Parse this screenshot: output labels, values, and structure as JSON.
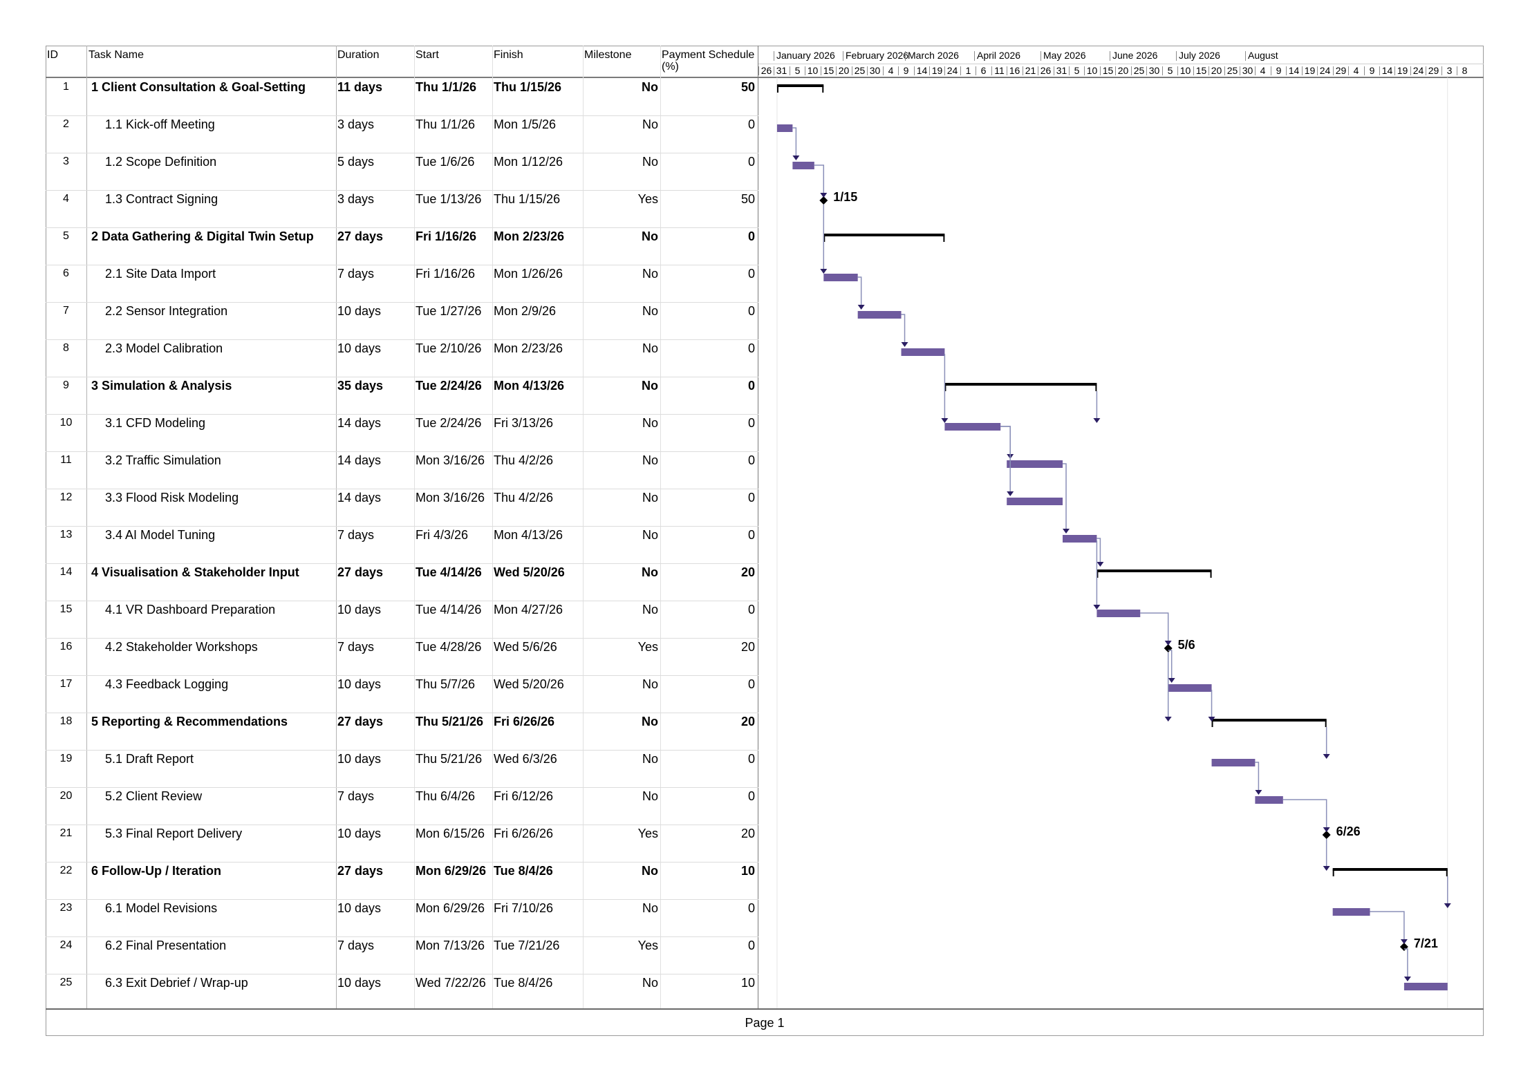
{
  "columns": {
    "id": "ID",
    "name": "Task Name",
    "duration": "Duration",
    "start": "Start",
    "finish": "Finish",
    "milestone": "Milestone",
    "payment_line1": "Payment Schedule",
    "payment_line2": "(%)"
  },
  "timeline": {
    "months": [
      "January 2026",
      "February 2026",
      "March 2026",
      "April 2026",
      "May 2026",
      "June 2026",
      "July 2026",
      "August"
    ],
    "days": [
      "26",
      "31",
      "5",
      "10",
      "15",
      "20",
      "25",
      "30",
      "4",
      "9",
      "14",
      "19",
      "24",
      "1",
      "6",
      "11",
      "16",
      "21",
      "26",
      "31",
      "5",
      "10",
      "15",
      "20",
      "25",
      "30",
      "5",
      "10",
      "15",
      "20",
      "25",
      "30",
      "4",
      "9",
      "14",
      "19",
      "24",
      "29",
      "4",
      "9",
      "14",
      "19",
      "24",
      "29",
      "3",
      "8"
    ]
  },
  "tasks": [
    {
      "id": "1",
      "name": "1 Client Consultation & Goal-Setting",
      "duration": "11 days",
      "start": "Thu 1/1/26",
      "finish": "Thu 1/15/26",
      "milestone": "No",
      "payment": "50",
      "summary": true,
      "s": "2026-01-01",
      "f": "2026-01-15"
    },
    {
      "id": "2",
      "name": "1.1 Kick-off Meeting",
      "duration": "3 days",
      "start": "Thu 1/1/26",
      "finish": "Mon 1/5/26",
      "milestone": "No",
      "payment": "0",
      "summary": false,
      "s": "2026-01-01",
      "f": "2026-01-05"
    },
    {
      "id": "3",
      "name": "1.2 Scope Definition",
      "duration": "5 days",
      "start": "Tue 1/6/26",
      "finish": "Mon 1/12/26",
      "milestone": "No",
      "payment": "0",
      "summary": false,
      "s": "2026-01-06",
      "f": "2026-01-12"
    },
    {
      "id": "4",
      "name": "1.3 Contract Signing",
      "duration": "3 days",
      "start": "Tue 1/13/26",
      "finish": "Thu 1/15/26",
      "milestone": "Yes",
      "payment": "50",
      "summary": false,
      "s": "2026-01-13",
      "f": "2026-01-15",
      "mlabel": "1/15"
    },
    {
      "id": "5",
      "name": "2 Data Gathering & Digital Twin Setup",
      "duration": "27 days",
      "start": "Fri 1/16/26",
      "finish": "Mon 2/23/26",
      "milestone": "No",
      "payment": "0",
      "summary": true,
      "s": "2026-01-16",
      "f": "2026-02-23"
    },
    {
      "id": "6",
      "name": "2.1 Site Data Import",
      "duration": "7 days",
      "start": "Fri 1/16/26",
      "finish": "Mon 1/26/26",
      "milestone": "No",
      "payment": "0",
      "summary": false,
      "s": "2026-01-16",
      "f": "2026-01-26"
    },
    {
      "id": "7",
      "name": "2.2 Sensor Integration",
      "duration": "10 days",
      "start": "Tue 1/27/26",
      "finish": "Mon 2/9/26",
      "milestone": "No",
      "payment": "0",
      "summary": false,
      "s": "2026-01-27",
      "f": "2026-02-09"
    },
    {
      "id": "8",
      "name": "2.3 Model Calibration",
      "duration": "10 days",
      "start": "Tue 2/10/26",
      "finish": "Mon 2/23/26",
      "milestone": "No",
      "payment": "0",
      "summary": false,
      "s": "2026-02-10",
      "f": "2026-02-23"
    },
    {
      "id": "9",
      "name": "3 Simulation & Analysis",
      "duration": "35 days",
      "start": "Tue 2/24/26",
      "finish": "Mon 4/13/26",
      "milestone": "No",
      "payment": "0",
      "summary": true,
      "s": "2026-02-24",
      "f": "2026-04-13"
    },
    {
      "id": "10",
      "name": "3.1 CFD Modeling",
      "duration": "14 days",
      "start": "Tue 2/24/26",
      "finish": "Fri 3/13/26",
      "milestone": "No",
      "payment": "0",
      "summary": false,
      "s": "2026-02-24",
      "f": "2026-03-13"
    },
    {
      "id": "11",
      "name": "3.2 Traffic Simulation",
      "duration": "14 days",
      "start": "Mon 3/16/26",
      "finish": "Thu 4/2/26",
      "milestone": "No",
      "payment": "0",
      "summary": false,
      "s": "2026-03-16",
      "f": "2026-04-02"
    },
    {
      "id": "12",
      "name": "3.3 Flood Risk Modeling",
      "duration": "14 days",
      "start": "Mon 3/16/26",
      "finish": "Thu 4/2/26",
      "milestone": "No",
      "payment": "0",
      "summary": false,
      "s": "2026-03-16",
      "f": "2026-04-02"
    },
    {
      "id": "13",
      "name": "3.4 AI Model Tuning",
      "duration": "7 days",
      "start": "Fri 4/3/26",
      "finish": "Mon 4/13/26",
      "milestone": "No",
      "payment": "0",
      "summary": false,
      "s": "2026-04-03",
      "f": "2026-04-13"
    },
    {
      "id": "14",
      "name": "4 Visualisation & Stakeholder Input",
      "duration": "27 days",
      "start": "Tue 4/14/26",
      "finish": "Wed 5/20/26",
      "milestone": "No",
      "payment": "20",
      "summary": true,
      "s": "2026-04-14",
      "f": "2026-05-20"
    },
    {
      "id": "15",
      "name": "4.1 VR Dashboard Preparation",
      "duration": "10 days",
      "start": "Tue 4/14/26",
      "finish": "Mon 4/27/26",
      "milestone": "No",
      "payment": "0",
      "summary": false,
      "s": "2026-04-14",
      "f": "2026-04-27"
    },
    {
      "id": "16",
      "name": "4.2 Stakeholder Workshops",
      "duration": "7 days",
      "start": "Tue 4/28/26",
      "finish": "Wed 5/6/26",
      "milestone": "Yes",
      "payment": "20",
      "summary": false,
      "s": "2026-04-28",
      "f": "2026-05-06",
      "mlabel": "5/6"
    },
    {
      "id": "17",
      "name": "4.3 Feedback Logging",
      "duration": "10 days",
      "start": "Thu 5/7/26",
      "finish": "Wed 5/20/26",
      "milestone": "No",
      "payment": "0",
      "summary": false,
      "s": "2026-05-07",
      "f": "2026-05-20"
    },
    {
      "id": "18",
      "name": "5 Reporting & Recommendations",
      "duration": "27 days",
      "start": "Thu 5/21/26",
      "finish": "Fri 6/26/26",
      "milestone": "No",
      "payment": "20",
      "summary": true,
      "s": "2026-05-21",
      "f": "2026-06-26"
    },
    {
      "id": "19",
      "name": "5.1 Draft Report",
      "duration": "10 days",
      "start": "Thu 5/21/26",
      "finish": "Wed 6/3/26",
      "milestone": "No",
      "payment": "0",
      "summary": false,
      "s": "2026-05-21",
      "f": "2026-06-03"
    },
    {
      "id": "20",
      "name": "5.2 Client Review",
      "duration": "7 days",
      "start": "Thu 6/4/26",
      "finish": "Fri 6/12/26",
      "milestone": "No",
      "payment": "0",
      "summary": false,
      "s": "2026-06-04",
      "f": "2026-06-12"
    },
    {
      "id": "21",
      "name": "5.3 Final Report Delivery",
      "duration": "10 days",
      "start": "Mon 6/15/26",
      "finish": "Fri 6/26/26",
      "milestone": "Yes",
      "payment": "20",
      "summary": false,
      "s": "2026-06-15",
      "f": "2026-06-26",
      "mlabel": "6/26"
    },
    {
      "id": "22",
      "name": "6 Follow-Up / Iteration",
      "duration": "27 days",
      "start": "Mon 6/29/26",
      "finish": "Tue 8/4/26",
      "milestone": "No",
      "payment": "10",
      "summary": true,
      "s": "2026-06-29",
      "f": "2026-08-04"
    },
    {
      "id": "23",
      "name": "6.1 Model Revisions",
      "duration": "10 days",
      "start": "Mon 6/29/26",
      "finish": "Fri 7/10/26",
      "milestone": "No",
      "payment": "0",
      "summary": false,
      "s": "2026-06-29",
      "f": "2026-07-10"
    },
    {
      "id": "24",
      "name": "6.2 Final Presentation",
      "duration": "7 days",
      "start": "Mon 7/13/26",
      "finish": "Tue 7/21/26",
      "milestone": "Yes",
      "payment": "0",
      "summary": false,
      "s": "2026-07-13",
      "f": "2026-07-21",
      "mlabel": "7/21"
    },
    {
      "id": "25",
      "name": "6.3 Exit Debrief / Wrap-up",
      "duration": "10 days",
      "start": "Wed 7/22/26",
      "finish": "Tue 8/4/26",
      "milestone": "No",
      "payment": "10",
      "summary": false,
      "s": "2026-07-22",
      "f": "2026-08-04"
    }
  ],
  "colors": {
    "bar": "#6e5a9e",
    "summary": "#000000",
    "link": "#8a8fb8",
    "arrow": "#2b1e63",
    "milestone": "#000000"
  },
  "footer": {
    "page": "Page 1"
  }
}
